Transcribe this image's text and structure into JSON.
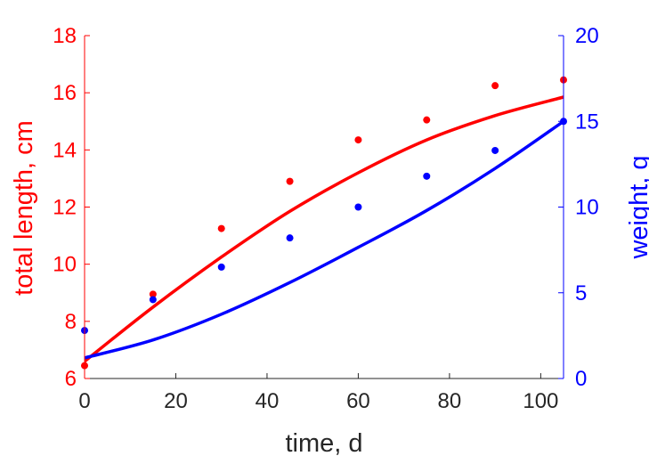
{
  "chart_data": {
    "type": "line",
    "xlabel": "time, d",
    "ylabel_left": "total length, cm",
    "ylabel_right": "weight, g",
    "xlim": [
      0,
      105
    ],
    "ylim_left": [
      6,
      18
    ],
    "ylim_right": [
      0,
      20
    ],
    "x_ticks": [
      0,
      20,
      40,
      60,
      80,
      100
    ],
    "y_left_ticks": [
      6,
      8,
      10,
      12,
      14,
      16,
      18
    ],
    "y_right_ticks": [
      0,
      5,
      10,
      15,
      20
    ],
    "grid": false,
    "colors": {
      "left": "#ff0000",
      "right": "#0000ff",
      "xaxis": "#262626"
    },
    "series": [
      {
        "axis": "left",
        "kind": "scatter",
        "color": "#ff0000",
        "x": [
          0,
          15,
          30,
          45,
          60,
          75,
          90,
          105
        ],
        "y": [
          6.45,
          8.95,
          11.25,
          12.9,
          14.35,
          15.05,
          16.25,
          16.45
        ]
      },
      {
        "axis": "left",
        "kind": "line",
        "color": "#ff0000",
        "x": [
          0,
          15,
          30,
          45,
          60,
          75,
          90,
          105
        ],
        "y": [
          6.6,
          8.5,
          10.25,
          11.85,
          13.2,
          14.35,
          15.2,
          15.85
        ]
      },
      {
        "axis": "right",
        "kind": "scatter",
        "color": "#0000ff",
        "x": [
          0,
          15,
          30,
          45,
          60,
          75,
          90,
          105
        ],
        "y": [
          2.8,
          4.6,
          6.5,
          8.2,
          10.0,
          11.8,
          13.3,
          15.0
        ]
      },
      {
        "axis": "right",
        "kind": "line",
        "color": "#0000ff",
        "x": [
          0,
          15,
          30,
          45,
          60,
          75,
          90,
          105
        ],
        "y": [
          1.2,
          2.25,
          3.75,
          5.6,
          7.65,
          9.8,
          12.25,
          15.0
        ]
      }
    ]
  }
}
